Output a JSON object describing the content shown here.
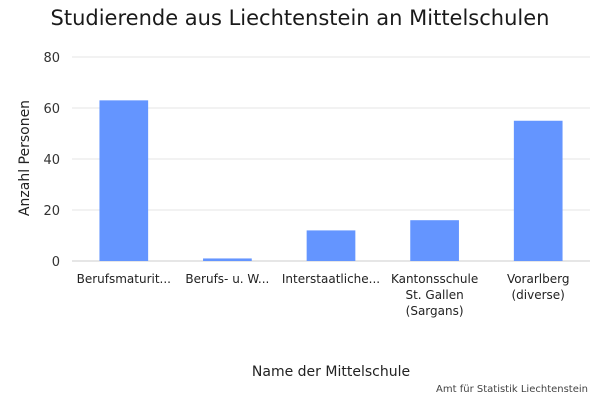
{
  "chart_data": {
    "type": "bar",
    "title": "Studierende aus Liechtenstein an Mittelschulen",
    "xlabel": "Name der Mittelschule",
    "ylabel": "Anzahl Personen",
    "categories": [
      [
        "Berufsmaturit..."
      ],
      [
        "Berufs- u. W..."
      ],
      [
        "Interstaatliche..."
      ],
      [
        "Kantonsschule",
        "St. Gallen",
        "(Sargans)"
      ],
      [
        "Vorarlberg",
        "(diverse)"
      ]
    ],
    "values": [
      63,
      1,
      12,
      16,
      55
    ],
    "ylim": [
      0,
      80
    ],
    "yticks": [
      0,
      20,
      40,
      60,
      80
    ],
    "grid": true,
    "bar_color": "#6495ff",
    "credits": "Amt für Statistik Liechtenstein"
  }
}
